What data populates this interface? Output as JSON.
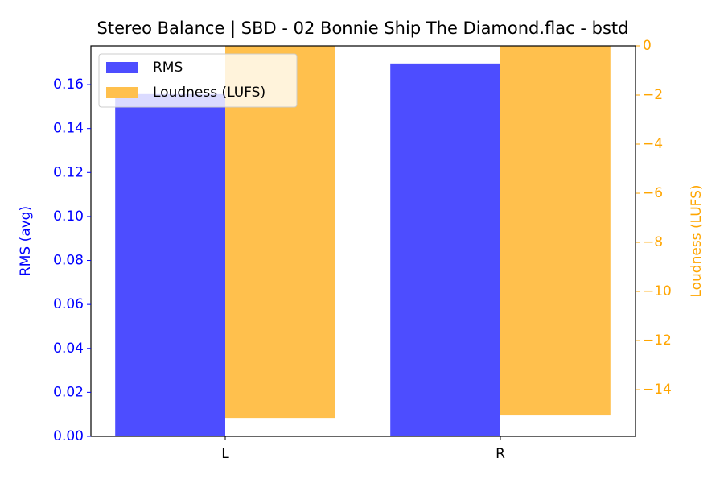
{
  "chart_data": {
    "type": "bar",
    "title": "Stereo Balance | SBD - 02 Bonnie Ship The Diamond.flac - bstd",
    "categories": [
      "L",
      "R"
    ],
    "series": [
      {
        "name": "RMS",
        "color": "#4d4dff",
        "values": [
          0.1557,
          0.1696
        ]
      },
      {
        "name": "Loudness (LUFS)",
        "color": "#ffc04d",
        "values": [
          -15.15,
          -15.05
        ],
        "axis": "y2"
      }
    ],
    "ylabel": "RMS (avg)",
    "y2label": "Loudness (LUFS)",
    "y_color": "#0000ff",
    "y2_color": "#ffa500",
    "ylim": [
      0,
      0.1776
    ],
    "yticks": [
      {
        "value": 0,
        "label": "0.00"
      },
      {
        "value": 0.02,
        "label": "0.02"
      },
      {
        "value": 0.04,
        "label": "0.04"
      },
      {
        "value": 0.06,
        "label": "0.06"
      },
      {
        "value": 0.08,
        "label": "0.08"
      },
      {
        "value": 0.1,
        "label": "0.10"
      },
      {
        "value": 0.12,
        "label": "0.12"
      },
      {
        "value": 0.14,
        "label": "0.14"
      },
      {
        "value": 0.16,
        "label": "0.16"
      }
    ],
    "y2lim": [
      -15.9,
      0
    ],
    "y2ticks": [
      {
        "value": -14,
        "label": "−14"
      },
      {
        "value": -12,
        "label": "−12"
      },
      {
        "value": -10,
        "label": "−10"
      },
      {
        "value": -8,
        "label": "−8"
      },
      {
        "value": -6,
        "label": "−6"
      },
      {
        "value": -4,
        "label": "−4"
      },
      {
        "value": -2,
        "label": "−2"
      },
      0
    ],
    "legend": "upper left"
  }
}
